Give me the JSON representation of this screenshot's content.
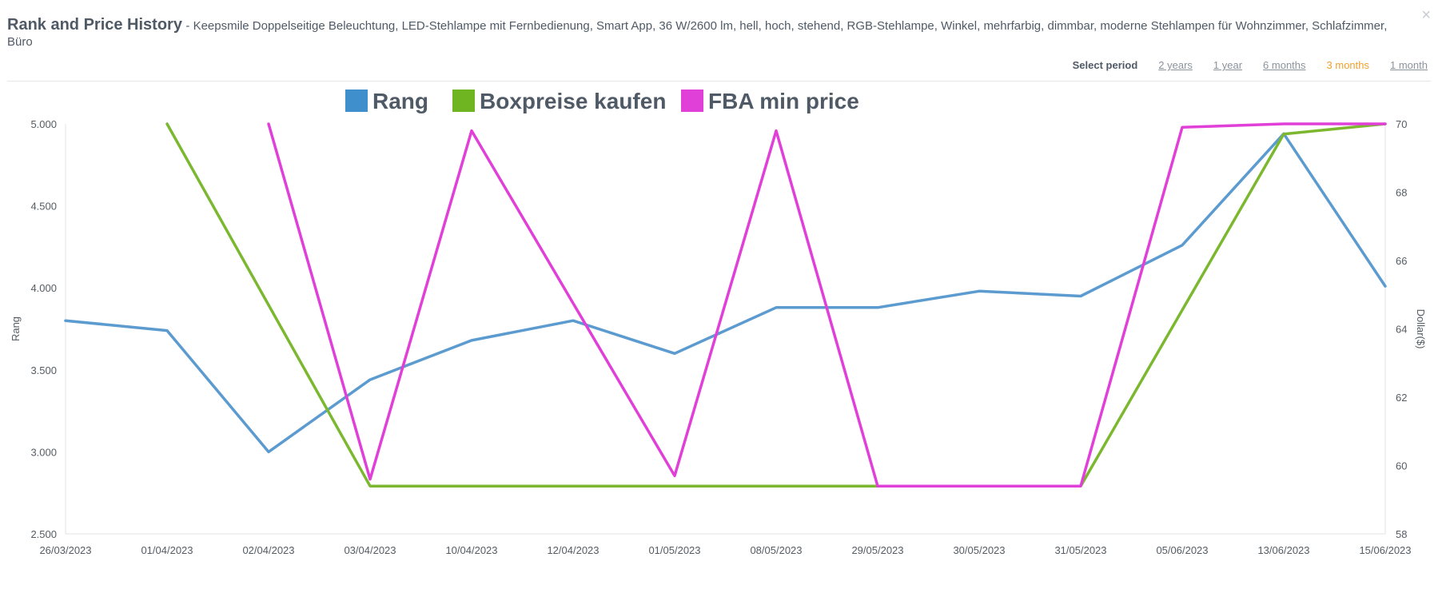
{
  "header": {
    "title": "Rank and Price History",
    "subtitle": "- Keepsmile Doppelseitige Beleuchtung, LED-Stehlampe mit Fernbedienung, Smart App, 36 W/2600 lm, hell, hoch, stehend, RGB-Stehlampe, Winkel, mehrfarbig, dimmbar, moderne Stehlampen für Wohnzimmer, Schlafzimmer, Büro",
    "close": "×"
  },
  "period": {
    "label": "Select period",
    "options": [
      "2 years",
      "1 year",
      "6 months",
      "3 months",
      "1 month"
    ],
    "active": "3 months"
  },
  "chart_data": {
    "type": "line",
    "categories": [
      "26/03/2023",
      "01/04/2023",
      "02/04/2023",
      "03/04/2023",
      "10/04/2023",
      "12/04/2023",
      "01/05/2023",
      "08/05/2023",
      "29/05/2023",
      "30/05/2023",
      "31/05/2023",
      "05/06/2023",
      "13/06/2023",
      "15/06/2023"
    ],
    "y_left": {
      "label": "Rang",
      "ticks": [
        "5.000",
        "4.500",
        "4.000",
        "3.500",
        "3.000",
        "2.500"
      ],
      "range": [
        2500,
        5000
      ]
    },
    "y_right": {
      "label": "Dollar($)",
      "ticks": [
        "70",
        "68",
        "66",
        "64",
        "62",
        "60",
        "58"
      ],
      "range": [
        58,
        70
      ]
    },
    "legend_position": "top-center",
    "series": [
      {
        "name": "Rang",
        "axis": "left",
        "color": "#5b9bcf",
        "legend_color": "#3e8fcb",
        "values": [
          3800,
          3740,
          3000,
          3440,
          3680,
          3800,
          3600,
          3880,
          3880,
          3980,
          3950,
          4260,
          4940,
          4010
        ]
      },
      {
        "name": "Boxpreise kaufen",
        "axis": "right",
        "color": "#7cb82f",
        "legend_color": "#6fb522",
        "values": [
          null,
          70.0,
          null,
          59.4,
          59.4,
          59.4,
          59.4,
          59.4,
          59.4,
          59.4,
          59.4,
          null,
          69.7,
          70.0
        ]
      },
      {
        "name": "FBA min price",
        "axis": "right",
        "color": "#e040d8",
        "legend_color": "#e03fd8",
        "values": [
          null,
          null,
          70.0,
          59.6,
          69.8,
          null,
          59.7,
          69.8,
          59.4,
          59.4,
          59.4,
          69.9,
          70.0,
          70.0
        ]
      }
    ]
  }
}
